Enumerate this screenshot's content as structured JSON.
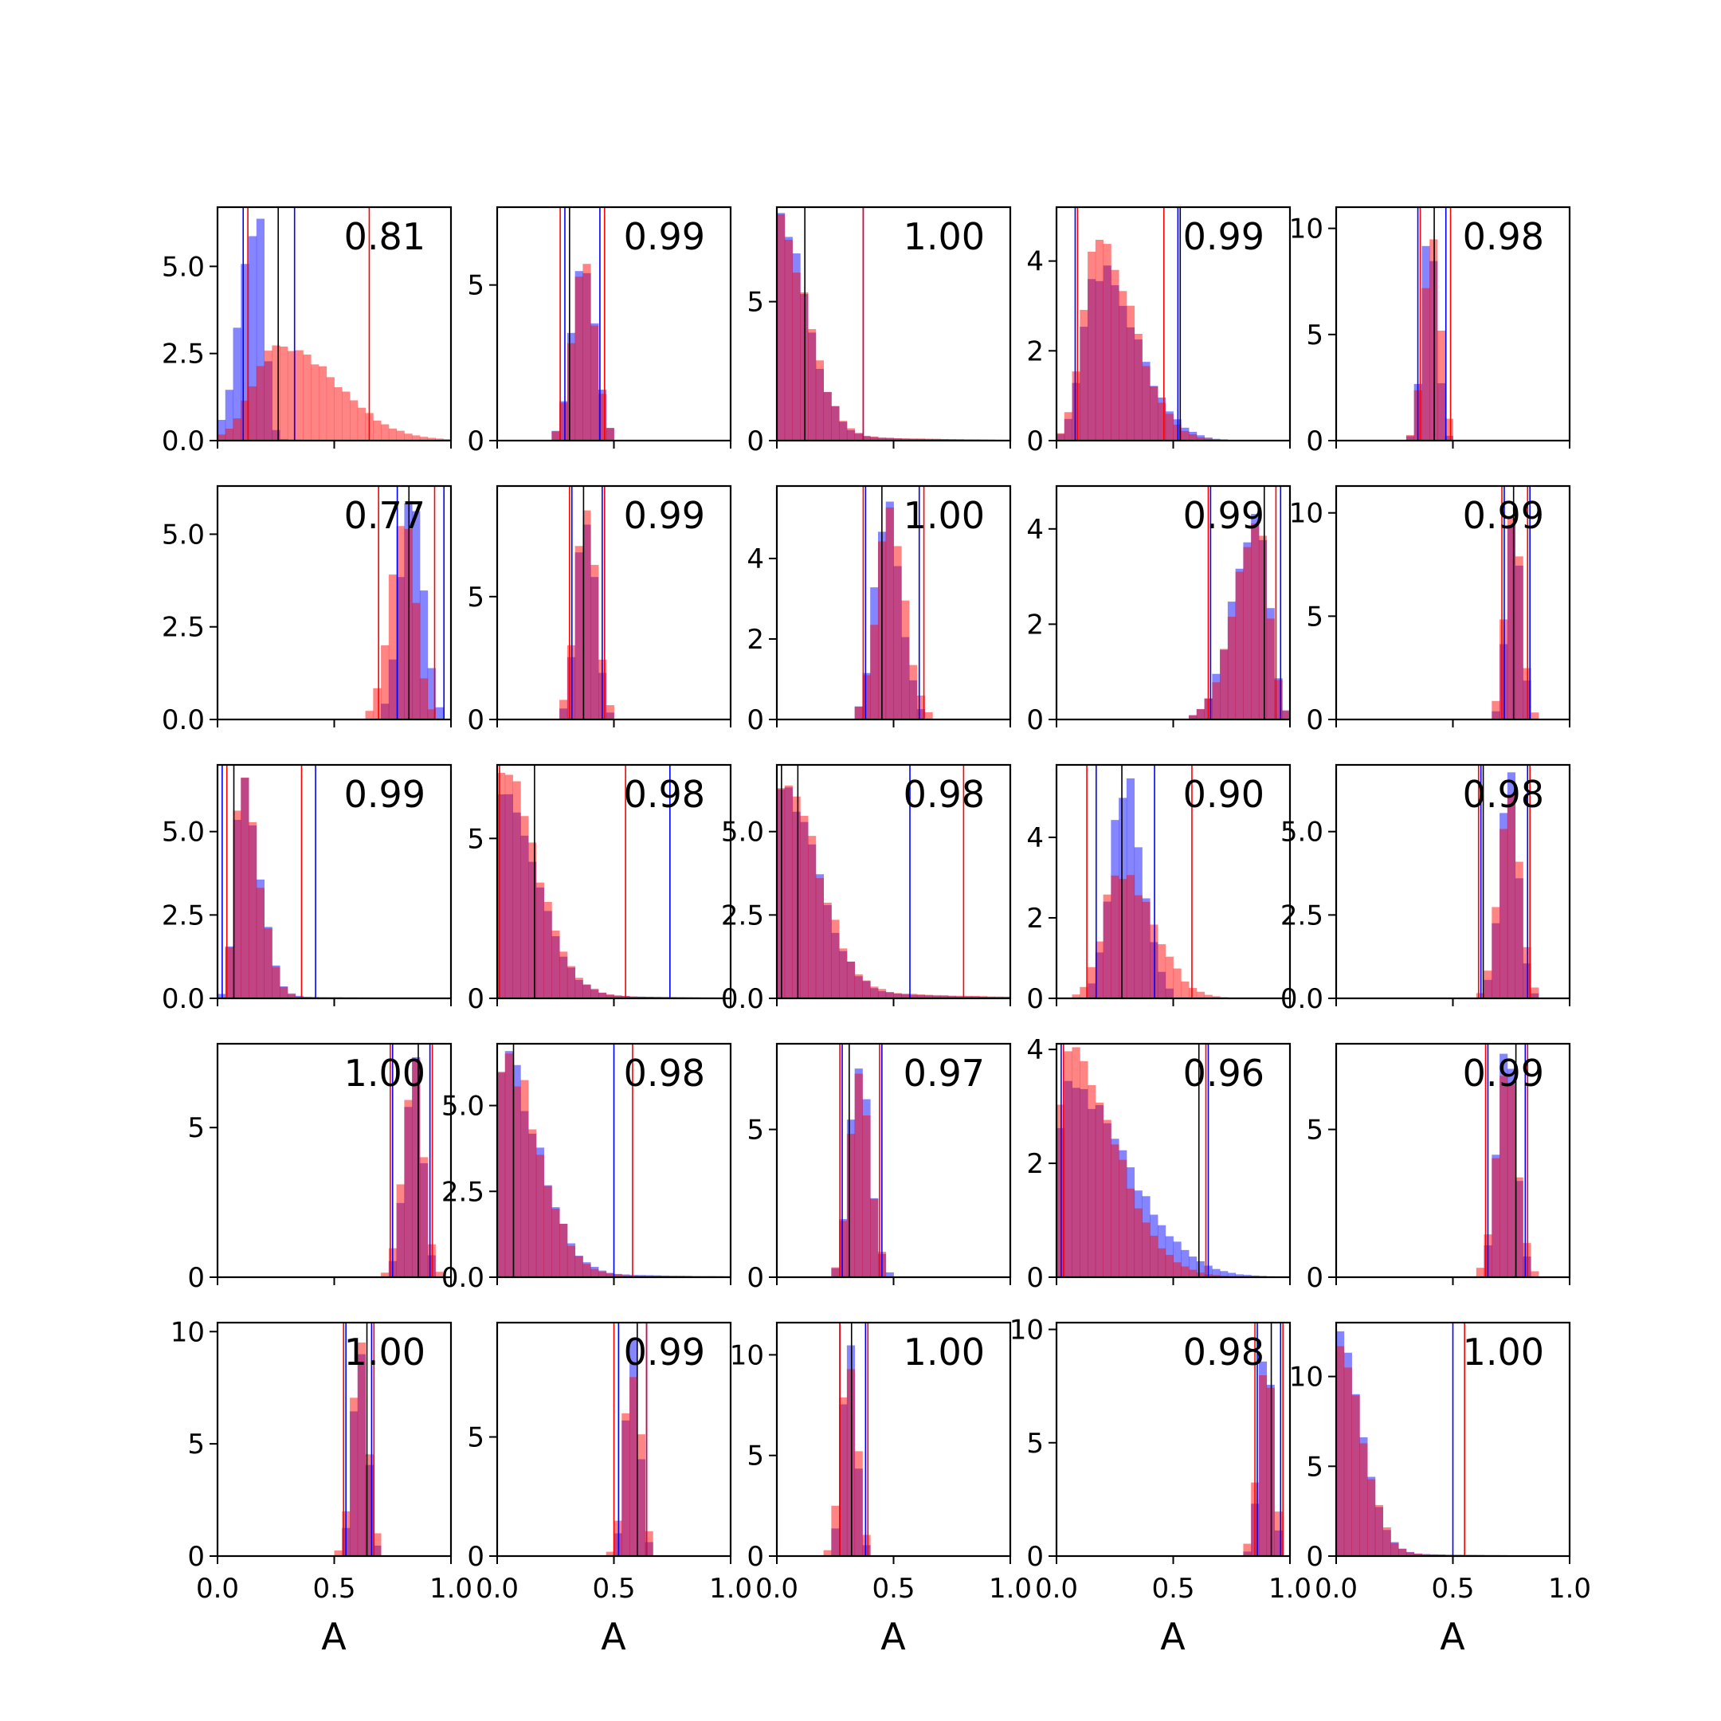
{
  "figure": {
    "xlabel": "A"
  },
  "chart_data": {
    "type": "histogram-grid",
    "rows": 5,
    "cols": 5,
    "xlim": [
      0,
      1
    ],
    "xticks": [
      0.0,
      0.5,
      1.0
    ],
    "xtick_labels": [
      "0.0",
      "0.5",
      "1.0"
    ],
    "xlabel": "A",
    "series_colors": {
      "blue": "#0000ff",
      "red": "#ff0000",
      "black": "#000000"
    },
    "panels": [
      {
        "label": "0.81",
        "ymax": 6.7,
        "yticks": [
          0,
          2.5,
          5
        ],
        "yticklabels": [
          "0.0",
          "2.5",
          "5.0"
        ],
        "blue": {
          "peak": 0.17,
          "sd": 0.07,
          "skew": 0.45,
          "amp": 6.5,
          "tail": 0.1,
          "seed": 1
        },
        "red": {
          "peak": 0.25,
          "sd": 0.1,
          "skew": 2.5,
          "amp": 2.7,
          "tail": 0.15,
          "seed": 2
        },
        "lines": {
          "blue": [
            0.11,
            0.33
          ],
          "red": [
            0.13,
            0.65
          ],
          "black": [
            0.26
          ]
        }
      },
      {
        "label": "0.99",
        "ymax": 7.5,
        "yticks": [
          0,
          5
        ],
        "yticklabels": [
          "0",
          "5"
        ],
        "blue": {
          "peak": 0.37,
          "sd": 0.05,
          "skew": 1,
          "amp": 5.7,
          "tail": 0,
          "seed": 3
        },
        "red": {
          "peak": 0.37,
          "sd": 0.05,
          "skew": 1,
          "amp": 5.5,
          "tail": 0,
          "seed": 4
        },
        "lines": {
          "blue": [
            0.29,
            0.44
          ],
          "red": [
            0.27,
            0.46
          ],
          "black": [
            0.31
          ]
        }
      },
      {
        "label": "1.00",
        "ymax": 8.4,
        "yticks": [
          0,
          5
        ],
        "yticklabels": [
          "0",
          "5"
        ],
        "blue": {
          "peak": 0.01,
          "sd": 0.03,
          "skew": 4,
          "amp": 7.5,
          "tail": 0.5,
          "seed": 5
        },
        "red": {
          "peak": 0.01,
          "sd": 0.03,
          "skew": 4,
          "amp": 7.6,
          "tail": 0.6,
          "seed": 6
        },
        "lines": {
          "blue": [
            0.37
          ],
          "red": [
            0.37
          ],
          "black": [
            0.12
          ]
        }
      },
      {
        "label": "0.99",
        "ymax": 5.2,
        "yticks": [
          0,
          2,
          4
        ],
        "yticklabels": [
          "0",
          "2",
          "4"
        ],
        "blue": {
          "peak": 0.17,
          "sd": 0.06,
          "skew": 2.8,
          "amp": 3.8,
          "tail": 0.1,
          "seed": 7
        },
        "red": {
          "peak": 0.17,
          "sd": 0.06,
          "skew": 2.6,
          "amp": 4.4,
          "tail": 0.05,
          "seed": 8
        },
        "lines": {
          "blue": [
            0.08,
            0.52
          ],
          "red": [
            0.09,
            0.46
          ],
          "black": [
            0.53
          ]
        }
      },
      {
        "label": "0.98",
        "ymax": 11,
        "yticks": [
          0,
          5,
          10
        ],
        "yticklabels": [
          "0",
          "5",
          "10"
        ],
        "blue": {
          "peak": 0.4,
          "sd": 0.03,
          "skew": 1,
          "amp": 10.2,
          "tail": 0,
          "seed": 9
        },
        "red": {
          "peak": 0.41,
          "sd": 0.035,
          "skew": 1,
          "amp": 9.8,
          "tail": 0,
          "seed": 10
        },
        "lines": {
          "blue": [
            0.35,
            0.47
          ],
          "red": [
            0.36,
            0.49
          ],
          "black": [
            0.42
          ]
        }
      },
      {
        "label": "0.77",
        "ymax": 6.3,
        "yticks": [
          0,
          2.5,
          5
        ],
        "yticklabels": [
          "0.0",
          "2.5",
          "5.0"
        ],
        "blue": {
          "peak": 0.83,
          "sd": 0.05,
          "skew": 1,
          "amp": 6.0,
          "tail": 0,
          "seed": 11
        },
        "red": {
          "peak": 0.8,
          "sd": 0.06,
          "skew": 0.8,
          "amp": 5.2,
          "tail": 0,
          "seed": 12
        },
        "lines": {
          "blue": [
            0.77,
            0.97
          ],
          "red": [
            0.69,
            0.93
          ],
          "black": [
            0.82
          ]
        }
      },
      {
        "label": "0.99",
        "ymax": 9.5,
        "yticks": [
          0,
          5
        ],
        "yticklabels": [
          "0",
          "5"
        ],
        "blue": {
          "peak": 0.38,
          "sd": 0.04,
          "skew": 1,
          "amp": 8.5,
          "tail": 0,
          "seed": 13
        },
        "red": {
          "peak": 0.38,
          "sd": 0.045,
          "skew": 1,
          "amp": 8.3,
          "tail": 0,
          "seed": 14
        },
        "lines": {
          "blue": [
            0.32,
            0.45
          ],
          "red": [
            0.31,
            0.46
          ],
          "black": [
            0.37
          ]
        }
      },
      {
        "label": "1.00",
        "ymax": 5.8,
        "yticks": [
          0,
          2,
          4
        ],
        "yticklabels": [
          "0",
          "2",
          "4"
        ],
        "blue": {
          "peak": 0.47,
          "sd": 0.05,
          "skew": 1.2,
          "amp": 5.4,
          "tail": 0,
          "seed": 15
        },
        "red": {
          "peak": 0.48,
          "sd": 0.055,
          "skew": 1.2,
          "amp": 4.9,
          "tail": 0,
          "seed": 16
        },
        "lines": {
          "blue": [
            0.38,
            0.61
          ],
          "red": [
            0.37,
            0.63
          ],
          "black": [
            0.45
          ]
        }
      },
      {
        "label": "0.99",
        "ymax": 4.9,
        "yticks": [
          0,
          2,
          4
        ],
        "yticklabels": [
          "0",
          "2",
          "4"
        ],
        "blue": {
          "peak": 0.86,
          "sd": 0.1,
          "skew": 0.5,
          "amp": 4.3,
          "tail": 0,
          "seed": 17
        },
        "red": {
          "peak": 0.86,
          "sd": 0.1,
          "skew": 0.5,
          "amp": 4.0,
          "tail": 0,
          "seed": 18
        },
        "lines": {
          "blue": [
            0.66,
            0.96
          ],
          "red": [
            0.65,
            0.94
          ],
          "black": [
            0.89
          ]
        }
      },
      {
        "label": "0.99",
        "ymax": 11.3,
        "yticks": [
          0,
          5,
          10
        ],
        "yticklabels": [
          "0",
          "5",
          "10"
        ],
        "blue": {
          "peak": 0.76,
          "sd": 0.03,
          "skew": 1,
          "amp": 10.8,
          "tail": 0,
          "seed": 19
        },
        "red": {
          "peak": 0.76,
          "sd": 0.035,
          "skew": 1,
          "amp": 10.0,
          "tail": 0,
          "seed": 20
        },
        "lines": {
          "blue": [
            0.72,
            0.83
          ],
          "red": [
            0.71,
            0.82
          ],
          "black": [
            0.76
          ]
        }
      },
      {
        "label": "0.99",
        "ymax": 7.0,
        "yticks": [
          0,
          2.5,
          5
        ],
        "yticklabels": [
          "0.0",
          "2.5",
          "5.0"
        ],
        "blue": {
          "peak": 0.1,
          "sd": 0.03,
          "skew": 2.5,
          "amp": 6.5,
          "tail": 0.2,
          "seed": 21
        },
        "red": {
          "peak": 0.1,
          "sd": 0.03,
          "skew": 2.5,
          "amp": 6.6,
          "tail": 0.1,
          "seed": 22
        },
        "lines": {
          "blue": [
            0.02,
            0.42
          ],
          "red": [
            0.04,
            0.36
          ],
          "black": [
            0.07
          ]
        }
      },
      {
        "label": "0.98",
        "ymax": 7.3,
        "yticks": [
          0,
          5
        ],
        "yticklabels": [
          "0",
          "5"
        ],
        "blue": {
          "peak": 0.02,
          "sd": 0.03,
          "skew": 5,
          "amp": 6.0,
          "tail": 0.5,
          "seed": 23
        },
        "red": {
          "peak": 0.02,
          "sd": 0.03,
          "skew": 5,
          "amp": 6.8,
          "tail": 0.45,
          "seed": 24
        },
        "lines": {
          "blue": [
            0.74
          ],
          "red": [
            0.01,
            0.55
          ],
          "black": [
            0.16
          ]
        }
      },
      {
        "label": "0.98",
        "ymax": 7.0,
        "yticks": [
          0,
          2.5,
          5
        ],
        "yticklabels": [
          "0.0",
          "2.5",
          "5.0"
        ],
        "blue": {
          "peak": 0.02,
          "sd": 0.03,
          "skew": 5,
          "amp": 6.2,
          "tail": 0.9,
          "seed": 25
        },
        "red": {
          "peak": 0.02,
          "sd": 0.03,
          "skew": 5,
          "amp": 6.4,
          "tail": 1.1,
          "seed": 26
        },
        "lines": {
          "blue": [
            0.57
          ],
          "red": [
            0.8
          ],
          "black": [
            0.02,
            0.09
          ]
        }
      },
      {
        "label": "0.90",
        "ymax": 5.8,
        "yticks": [
          0,
          2,
          4
        ],
        "yticklabels": [
          "0",
          "2",
          "4"
        ],
        "blue": {
          "peak": 0.29,
          "sd": 0.06,
          "skew": 1.3,
          "amp": 5.4,
          "tail": 0,
          "seed": 27
        },
        "red": {
          "peak": 0.27,
          "sd": 0.07,
          "skew": 2,
          "amp": 3.2,
          "tail": 0.1,
          "seed": 28
        },
        "lines": {
          "blue": [
            0.17,
            0.42
          ],
          "red": [
            0.13,
            0.58
          ],
          "black": [
            0.28
          ]
        }
      },
      {
        "label": "0.98",
        "ymax": 7.0,
        "yticks": [
          0,
          2.5,
          5
        ],
        "yticklabels": [
          "0.0",
          "2.5",
          "5.0"
        ],
        "blue": {
          "peak": 0.74,
          "sd": 0.04,
          "skew": 1,
          "amp": 6.6,
          "tail": 0,
          "seed": 29
        },
        "red": {
          "peak": 0.74,
          "sd": 0.045,
          "skew": 1,
          "amp": 6.3,
          "tail": 0,
          "seed": 30
        },
        "lines": {
          "blue": [
            0.62,
            0.82
          ],
          "red": [
            0.61,
            0.83
          ],
          "black": [
            0.63
          ]
        }
      },
      {
        "label": "1.00",
        "ymax": 7.8,
        "yticks": [
          0,
          5
        ],
        "yticklabels": [
          "0",
          "5"
        ],
        "blue": {
          "peak": 0.84,
          "sd": 0.04,
          "skew": 0.9,
          "amp": 7.3,
          "tail": 0,
          "seed": 31
        },
        "red": {
          "peak": 0.84,
          "sd": 0.045,
          "skew": 0.9,
          "amp": 7.0,
          "tail": 0,
          "seed": 32
        },
        "lines": {
          "blue": [
            0.75,
            0.91
          ],
          "red": [
            0.74,
            0.92
          ],
          "black": [
            0.86
          ]
        }
      },
      {
        "label": "0.98",
        "ymax": 6.8,
        "yticks": [
          0,
          2.5,
          5
        ],
        "yticklabels": [
          "0.0",
          "2.5",
          "5.0"
        ],
        "blue": {
          "peak": 0.02,
          "sd": 0.03,
          "skew": 5,
          "amp": 6.2,
          "tail": 0.6,
          "seed": 33
        },
        "red": {
          "peak": 0.02,
          "sd": 0.03,
          "skew": 5,
          "amp": 6.4,
          "tail": 0.4,
          "seed": 34
        },
        "lines": {
          "blue": [
            0.5
          ],
          "red": [
            0.58
          ],
          "black": [
            0.07
          ]
        }
      },
      {
        "label": "0.97",
        "ymax": 7.9,
        "yticks": [
          0,
          5
        ],
        "yticklabels": [
          "0",
          "5"
        ],
        "blue": {
          "peak": 0.35,
          "sd": 0.04,
          "skew": 1.2,
          "amp": 7.4,
          "tail": 0,
          "seed": 35
        },
        "red": {
          "peak": 0.35,
          "sd": 0.04,
          "skew": 1.2,
          "amp": 7.2,
          "tail": 0,
          "seed": 36
        },
        "lines": {
          "blue": [
            0.28,
            0.45
          ],
          "red": [
            0.27,
            0.44
          ],
          "black": [
            0.31
          ]
        }
      },
      {
        "label": "0.96",
        "ymax": 4.1,
        "yticks": [
          0,
          2,
          4
        ],
        "yticklabels": [
          "0",
          "2",
          "4"
        ],
        "blue": {
          "peak": 0.05,
          "sd": 0.05,
          "skew": 5,
          "amp": 3.2,
          "tail": 0.3,
          "seed": 37
        },
        "red": {
          "peak": 0.05,
          "sd": 0.05,
          "skew": 4,
          "amp": 3.8,
          "tail": 0.2,
          "seed": 38
        },
        "lines": {
          "blue": [
            0.02,
            0.65
          ],
          "red": [
            0.03,
            0.64
          ],
          "black": [
            0.61
          ]
        }
      },
      {
        "label": "0.99",
        "ymax": 7.9,
        "yticks": [
          0,
          5
        ],
        "yticklabels": [
          "0",
          "5"
        ],
        "blue": {
          "peak": 0.73,
          "sd": 0.04,
          "skew": 1,
          "amp": 7.7,
          "tail": 0,
          "seed": 39
        },
        "red": {
          "peak": 0.73,
          "sd": 0.045,
          "skew": 1,
          "amp": 7.4,
          "tail": 0,
          "seed": 40
        },
        "lines": {
          "blue": [
            0.65,
            0.81
          ],
          "red": [
            0.64,
            0.82
          ],
          "black": [
            0.77
          ]
        }
      },
      {
        "label": "1.00",
        "ymax": 10.4,
        "yticks": [
          0,
          5,
          10
        ],
        "yticklabels": [
          "0",
          "5",
          "10"
        ],
        "blue": {
          "peak": 0.61,
          "sd": 0.03,
          "skew": 1,
          "amp": 9.6,
          "tail": 0,
          "seed": 41
        },
        "red": {
          "peak": 0.61,
          "sd": 0.035,
          "skew": 1,
          "amp": 9.2,
          "tail": 0,
          "seed": 42
        },
        "lines": {
          "blue": [
            0.55,
            0.66
          ],
          "red": [
            0.54,
            0.67
          ],
          "black": [
            0.64
          ]
        }
      },
      {
        "label": "0.99",
        "ymax": 9.8,
        "yticks": [
          0,
          5
        ],
        "yticklabels": [
          "0",
          "5"
        ],
        "blue": {
          "peak": 0.58,
          "sd": 0.03,
          "skew": 1,
          "amp": 8.7,
          "tail": 0,
          "seed": 43
        },
        "red": {
          "peak": 0.58,
          "sd": 0.035,
          "skew": 1,
          "amp": 8.2,
          "tail": 0,
          "seed": 44
        },
        "lines": {
          "blue": [
            0.52,
            0.64
          ],
          "red": [
            0.5,
            0.64
          ],
          "black": [
            0.6
          ]
        }
      },
      {
        "label": "1.00",
        "ymax": 11.6,
        "yticks": [
          0,
          5,
          10
        ],
        "yticklabels": [
          "0",
          "5",
          "10"
        ],
        "blue": {
          "peak": 0.31,
          "sd": 0.03,
          "skew": 1,
          "amp": 10.8,
          "tail": 0,
          "seed": 45
        },
        "red": {
          "peak": 0.31,
          "sd": 0.035,
          "skew": 1,
          "amp": 10.2,
          "tail": 0,
          "seed": 46
        },
        "lines": {
          "blue": [
            0.27,
            0.38
          ],
          "red": [
            0.27,
            0.39
          ],
          "black": [
            0.32
          ]
        }
      },
      {
        "label": "0.98",
        "ymax": 10.3,
        "yticks": [
          0,
          5,
          10
        ],
        "yticklabels": [
          "0",
          "5",
          "10"
        ],
        "blue": {
          "peak": 0.9,
          "sd": 0.03,
          "skew": 0.8,
          "amp": 9.5,
          "tail": 0,
          "seed": 47
        },
        "red": {
          "peak": 0.9,
          "sd": 0.035,
          "skew": 0.8,
          "amp": 9.0,
          "tail": 0,
          "seed": 48
        },
        "lines": {
          "blue": [
            0.86,
            0.96
          ],
          "red": [
            0.85,
            0.97
          ],
          "black": [
            0.92
          ]
        }
      },
      {
        "label": "1.00",
        "ymax": 13.0,
        "yticks": [
          0,
          5,
          10
        ],
        "yticklabels": [
          "0",
          "5",
          "10"
        ],
        "blue": {
          "peak": 0.01,
          "sd": 0.02,
          "skew": 5,
          "amp": 12.0,
          "tail": 0.3,
          "seed": 49
        },
        "red": {
          "peak": 0.01,
          "sd": 0.02,
          "skew": 5,
          "amp": 11.5,
          "tail": 0.3,
          "seed": 50
        },
        "lines": {
          "blue": [
            0.5
          ],
          "red": [
            0.55
          ],
          "black": [
            0.0
          ]
        }
      }
    ]
  }
}
